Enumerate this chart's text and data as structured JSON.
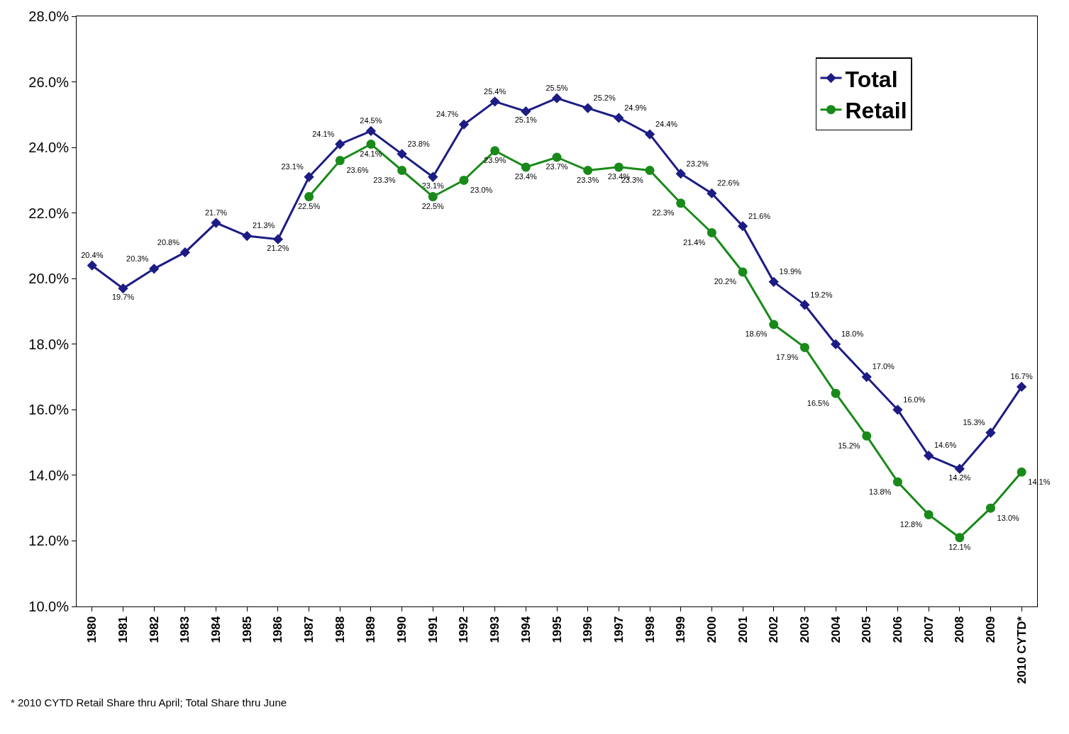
{
  "chart_data": {
    "type": "line",
    "categories": [
      "1980",
      "1981",
      "1982",
      "1983",
      "1984",
      "1985",
      "1986",
      "1987",
      "1988",
      "1989",
      "1990",
      "1991",
      "1992",
      "1993",
      "1994",
      "1995",
      "1996",
      "1997",
      "1998",
      "1999",
      "2000",
      "2001",
      "2002",
      "2003",
      "2004",
      "2005",
      "2006",
      "2007",
      "2008",
      "2009",
      "2010 CYTD*"
    ],
    "series": [
      {
        "name": "Total",
        "color": "#1c1c84",
        "marker": "diamond",
        "values": [
          20.4,
          19.7,
          20.3,
          20.8,
          21.7,
          21.3,
          21.2,
          23.1,
          24.1,
          24.5,
          23.8,
          23.1,
          24.7,
          25.4,
          25.1,
          25.5,
          25.2,
          24.9,
          24.4,
          23.2,
          22.6,
          21.6,
          19.9,
          19.2,
          18.0,
          17.0,
          16.0,
          14.6,
          14.2,
          15.3,
          16.7
        ],
        "value_labels": [
          "20.4%",
          "19.7%",
          "20.3%",
          "20.8%",
          "21.7%",
          "21.3%",
          "21.2%",
          "23.1%",
          "24.1%",
          "24.5%",
          "23.8%",
          "23.1%",
          "24.7%",
          "25.4%",
          "25.1%",
          "25.5%",
          "25.2%",
          "24.9%",
          "24.4%",
          "23.2%",
          "22.6%",
          "21.6%",
          "19.9%",
          "19.2%",
          "18.0%",
          "17.0%",
          "16.0%",
          "14.6%",
          "14.2%",
          "15.3%",
          "16.7%"
        ]
      },
      {
        "name": "Retail",
        "color": "#198a19",
        "marker": "circle",
        "values": [
          null,
          null,
          null,
          null,
          null,
          null,
          null,
          22.5,
          23.6,
          24.1,
          23.3,
          22.5,
          23.0,
          23.9,
          23.4,
          23.7,
          23.3,
          23.4,
          23.3,
          22.3,
          21.4,
          20.2,
          18.6,
          17.9,
          16.5,
          15.2,
          13.8,
          12.8,
          12.1,
          13.0,
          14.1
        ],
        "value_labels": [
          null,
          null,
          null,
          null,
          null,
          null,
          null,
          "22.5%",
          "23.6%",
          "24.1%",
          "23.3%",
          "22.5%",
          "23.0%",
          "23.9%",
          "23.4%",
          "23.7%",
          "23.3%",
          "23.4%",
          "23.3%",
          "22.3%",
          "21.4%",
          "20.2%",
          "18.6%",
          "17.9%",
          "16.5%",
          "15.2%",
          "13.8%",
          "12.8%",
          "12.1%",
          "13.0%",
          "14.1%"
        ]
      }
    ],
    "ylim": [
      10,
      28
    ],
    "yticks": [
      {
        "value": 10,
        "label": "10.0%"
      },
      {
        "value": 12,
        "label": "12.0%"
      },
      {
        "value": 14,
        "label": "14.0%"
      },
      {
        "value": 16,
        "label": "16.0%"
      },
      {
        "value": 18,
        "label": "18.0%"
      },
      {
        "value": 20,
        "label": "20.0%"
      },
      {
        "value": 22,
        "label": "22.0%"
      },
      {
        "value": 24,
        "label": "24.0%"
      },
      {
        "value": 26,
        "label": "26.0%"
      },
      {
        "value": 28,
        "label": "28.0%"
      }
    ],
    "grid": false,
    "legend": "top right",
    "line_style": "solid",
    "annotations": [
      "* 2010 CYTD Retail Share thru April; Total Share thru June"
    ]
  }
}
